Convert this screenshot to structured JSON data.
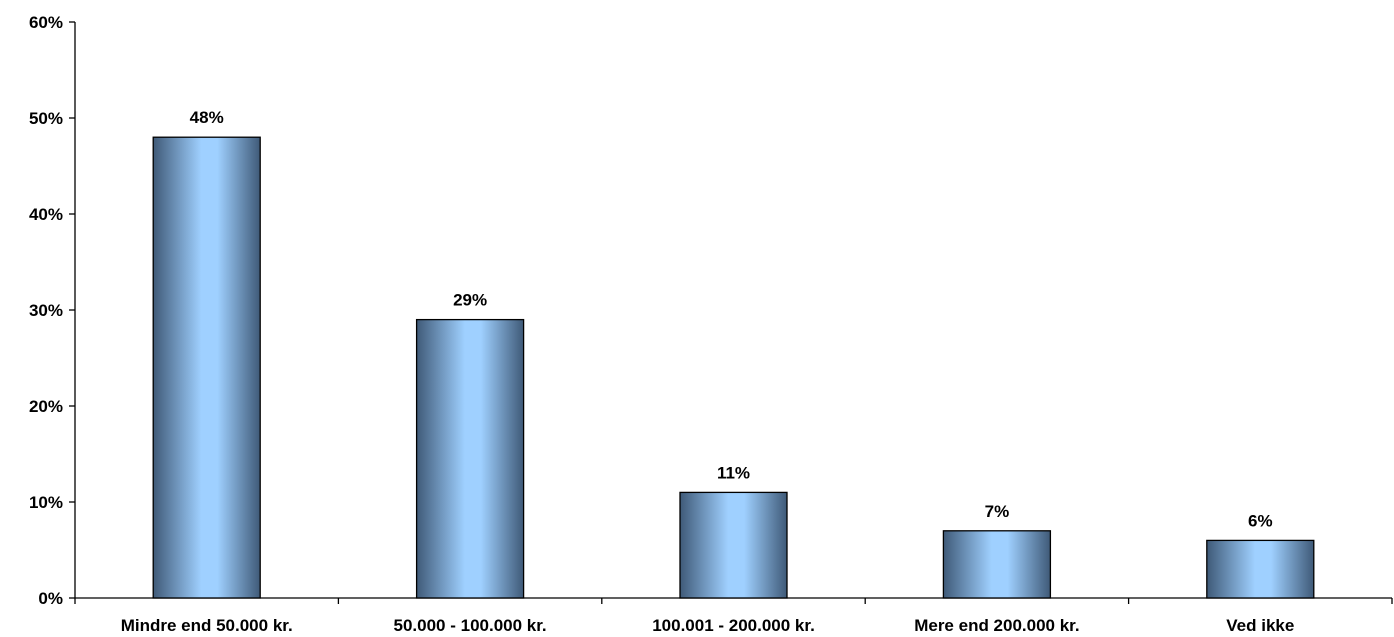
{
  "chart_data": {
    "type": "bar",
    "categories": [
      "Mindre end 50.000 kr.",
      "50.000 - 100.000 kr.",
      "100.001 - 200.000 kr.",
      "Mere end 200.000 kr.",
      "Ved ikke"
    ],
    "values": [
      48,
      29,
      11,
      7,
      6
    ],
    "data_labels": [
      "48%",
      "29%",
      "11%",
      "7%",
      "6%"
    ],
    "y_tick_labels": [
      "0%",
      "10%",
      "20%",
      "30%",
      "40%",
      "50%",
      "60%"
    ],
    "y_ticks": [
      0,
      10,
      20,
      30,
      40,
      50,
      60
    ],
    "ylim": [
      0,
      60
    ],
    "title": "",
    "xlabel": "",
    "ylabel": "",
    "grid": false,
    "legend": "none",
    "colors": {
      "bar_center": "#9fd0ff",
      "bar_edge": "#3f5a78",
      "bar_outline": "#000000",
      "axis": "#000000"
    }
  }
}
